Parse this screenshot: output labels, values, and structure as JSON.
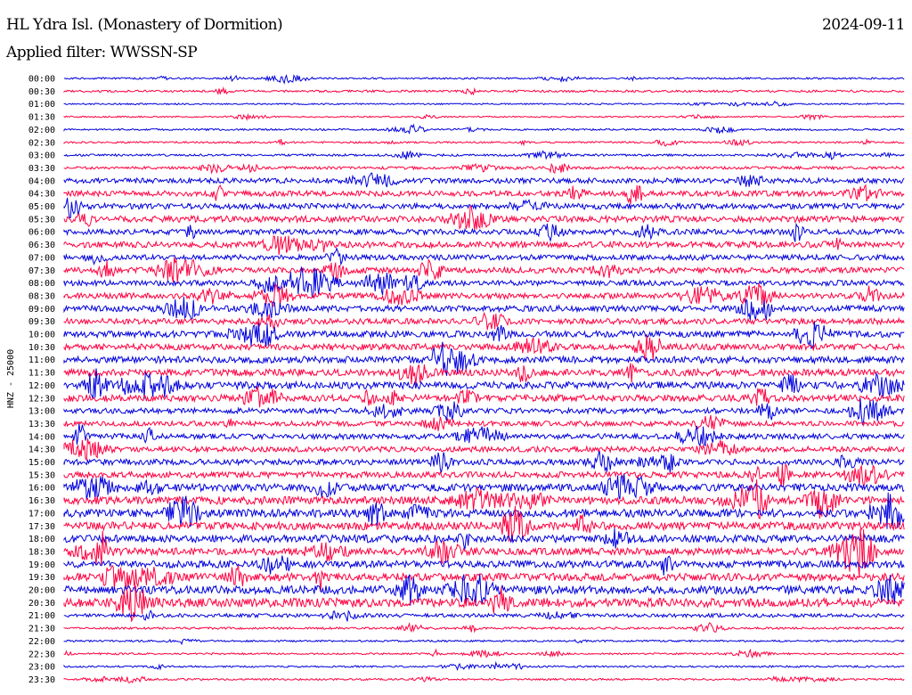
{
  "header": {
    "station": "HL Ydra Isl. (Monastery of Dormition)",
    "date": "2024-09-11",
    "filter": "Applied filter: WWSSN-SP"
  },
  "chart_data": {
    "type": "line",
    "ylabel": "HNZ - 25000",
    "trace_colors": [
      "#0000dd",
      "#ff0040"
    ],
    "rows": [
      {
        "label": "00:00",
        "color": "#0000dd",
        "noise": 1.0
      },
      {
        "label": "00:30",
        "color": "#ff0040",
        "noise": 1.2
      },
      {
        "label": "01:00",
        "color": "#0000dd",
        "noise": 0.8
      },
      {
        "label": "01:30",
        "color": "#ff0040",
        "noise": 0.8
      },
      {
        "label": "02:00",
        "color": "#0000dd",
        "noise": 1.0
      },
      {
        "label": "02:30",
        "color": "#ff0040",
        "noise": 1.0
      },
      {
        "label": "03:00",
        "color": "#0000dd",
        "noise": 1.2
      },
      {
        "label": "03:30",
        "color": "#ff0040",
        "noise": 1.6
      },
      {
        "label": "04:00",
        "color": "#0000dd",
        "noise": 2.8
      },
      {
        "label": "04:30",
        "color": "#ff0040",
        "noise": 3.0
      },
      {
        "label": "05:00",
        "color": "#0000dd",
        "noise": 3.2
      },
      {
        "label": "05:30",
        "color": "#ff0040",
        "noise": 3.5
      },
      {
        "label": "06:00",
        "color": "#0000dd",
        "noise": 3.0
      },
      {
        "label": "06:30",
        "color": "#ff0040",
        "noise": 3.4
      },
      {
        "label": "07:00",
        "color": "#0000dd",
        "noise": 3.0
      },
      {
        "label": "07:30",
        "color": "#ff0040",
        "noise": 3.2
      },
      {
        "label": "08:00",
        "color": "#0000dd",
        "noise": 3.0
      },
      {
        "label": "08:30",
        "color": "#ff0040",
        "noise": 3.2
      },
      {
        "label": "09:00",
        "color": "#0000dd",
        "noise": 3.4
      },
      {
        "label": "09:30",
        "color": "#ff0040",
        "noise": 3.2
      },
      {
        "label": "10:00",
        "color": "#0000dd",
        "noise": 3.6
      },
      {
        "label": "10:30",
        "color": "#ff0040",
        "noise": 3.4
      },
      {
        "label": "11:00",
        "color": "#0000dd",
        "noise": 3.8
      },
      {
        "label": "11:30",
        "color": "#ff0040",
        "noise": 3.8
      },
      {
        "label": "12:00",
        "color": "#0000dd",
        "noise": 4.0
      },
      {
        "label": "12:30",
        "color": "#ff0040",
        "noise": 3.8
      },
      {
        "label": "13:00",
        "color": "#0000dd",
        "noise": 3.0
      },
      {
        "label": "13:30",
        "color": "#ff0040",
        "noise": 2.8
      },
      {
        "label": "14:00",
        "color": "#0000dd",
        "noise": 3.0
      },
      {
        "label": "14:30",
        "color": "#ff0040",
        "noise": 3.0
      },
      {
        "label": "15:00",
        "color": "#0000dd",
        "noise": 3.2
      },
      {
        "label": "15:30",
        "color": "#ff0040",
        "noise": 3.4
      },
      {
        "label": "16:00",
        "color": "#0000dd",
        "noise": 4.2
      },
      {
        "label": "16:30",
        "color": "#ff0040",
        "noise": 4.4
      },
      {
        "label": "17:00",
        "color": "#0000dd",
        "noise": 4.4
      },
      {
        "label": "17:30",
        "color": "#ff0040",
        "noise": 4.4
      },
      {
        "label": "18:00",
        "color": "#0000dd",
        "noise": 4.2
      },
      {
        "label": "18:30",
        "color": "#ff0040",
        "noise": 4.0
      },
      {
        "label": "19:00",
        "color": "#0000dd",
        "noise": 4.0
      },
      {
        "label": "19:30",
        "color": "#ff0040",
        "noise": 4.2
      },
      {
        "label": "20:00",
        "color": "#0000dd",
        "noise": 4.6
      },
      {
        "label": "20:30",
        "color": "#ff0040",
        "noise": 5.0
      },
      {
        "label": "21:00",
        "color": "#0000dd",
        "noise": 2.0
      },
      {
        "label": "21:30",
        "color": "#ff0040",
        "noise": 1.2
      },
      {
        "label": "22:00",
        "color": "#0000dd",
        "noise": 1.0
      },
      {
        "label": "22:30",
        "color": "#ff0040",
        "noise": 1.0
      },
      {
        "label": "23:00",
        "color": "#0000dd",
        "noise": 1.0
      },
      {
        "label": "23:30",
        "color": "#ff0040",
        "noise": 1.0
      }
    ]
  }
}
